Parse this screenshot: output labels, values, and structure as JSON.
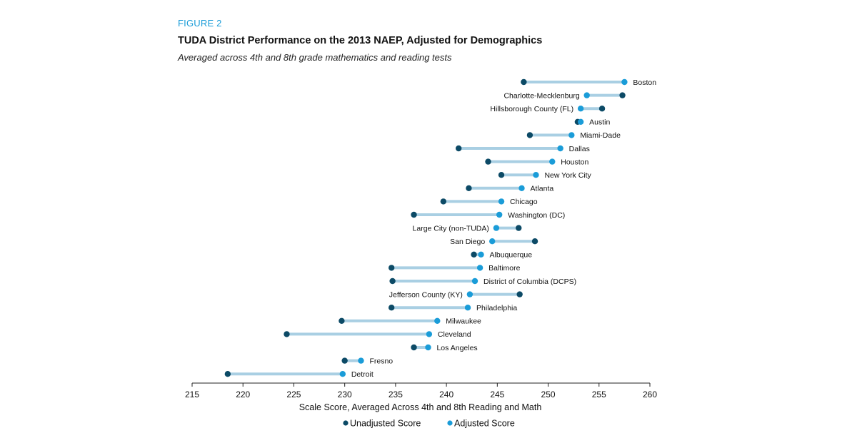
{
  "figure": {
    "label": "FIGURE 2",
    "title": "TUDA District Performance on the 2013 NAEP, Adjusted for Demographics",
    "subtitle": "Averaged across 4th and 8th grade mathematics and reading tests"
  },
  "colors": {
    "unadjusted": "#0c4a66",
    "adjusted": "#1a9cd8",
    "connector": "#a9cfe3",
    "axis": "#222222"
  },
  "chart_data": {
    "type": "dumbbell",
    "title": "TUDA District Performance on the 2013 NAEP, Adjusted for Demographics",
    "subtitle": "Averaged across 4th and 8th grade mathematics and reading tests",
    "xlabel": "Scale Score, Averaged Across 4th and 8th Reading and Math",
    "xlim": [
      215,
      260
    ],
    "xticks": [
      215,
      220,
      225,
      230,
      235,
      240,
      245,
      250,
      255,
      260
    ],
    "legend": {
      "position": "bottom",
      "entries": [
        "Unadjusted Score",
        "Adjusted Score"
      ]
    },
    "series": [
      {
        "name": "Unadjusted Score",
        "key": "unadjusted"
      },
      {
        "name": "Adjusted Score",
        "key": "adjusted"
      }
    ],
    "districts": [
      {
        "name": "Boston",
        "unadjusted": 247.6,
        "adjusted": 257.5
      },
      {
        "name": "Charlotte-Mecklenburg",
        "unadjusted": 257.3,
        "adjusted": 253.8
      },
      {
        "name": "Hillsborough County (FL)",
        "unadjusted": 255.3,
        "adjusted": 253.2
      },
      {
        "name": "Austin",
        "unadjusted": 252.9,
        "adjusted": 253.2
      },
      {
        "name": "Miami-Dade",
        "unadjusted": 248.2,
        "adjusted": 252.3
      },
      {
        "name": "Dallas",
        "unadjusted": 241.2,
        "adjusted": 251.2
      },
      {
        "name": "Houston",
        "unadjusted": 244.1,
        "adjusted": 250.4
      },
      {
        "name": "New York City",
        "unadjusted": 245.4,
        "adjusted": 248.8
      },
      {
        "name": "Atlanta",
        "unadjusted": 242.2,
        "adjusted": 247.4
      },
      {
        "name": "Chicago",
        "unadjusted": 239.7,
        "adjusted": 245.4
      },
      {
        "name": "Washington (DC)",
        "unadjusted": 236.8,
        "adjusted": 245.2
      },
      {
        "name": "Large City (non-TUDA)",
        "unadjusted": 247.1,
        "adjusted": 244.9
      },
      {
        "name": "San Diego",
        "unadjusted": 248.7,
        "adjusted": 244.5
      },
      {
        "name": "Albuquerque",
        "unadjusted": 242.7,
        "adjusted": 243.4
      },
      {
        "name": "Baltimore",
        "unadjusted": 234.6,
        "adjusted": 243.3
      },
      {
        "name": "District of Columbia (DCPS)",
        "unadjusted": 234.7,
        "adjusted": 242.8
      },
      {
        "name": "Jefferson County (KY)",
        "unadjusted": 247.2,
        "adjusted": 242.3
      },
      {
        "name": "Philadelphia",
        "unadjusted": 234.6,
        "adjusted": 242.1
      },
      {
        "name": "Milwaukee",
        "unadjusted": 229.7,
        "adjusted": 239.1
      },
      {
        "name": "Cleveland",
        "unadjusted": 224.3,
        "adjusted": 238.3
      },
      {
        "name": "Los Angeles",
        "unadjusted": 236.8,
        "adjusted": 238.2
      },
      {
        "name": "Fresno",
        "unadjusted": 230.0,
        "adjusted": 231.6
      },
      {
        "name": "Detroit",
        "unadjusted": 218.5,
        "adjusted": 229.8
      }
    ]
  }
}
